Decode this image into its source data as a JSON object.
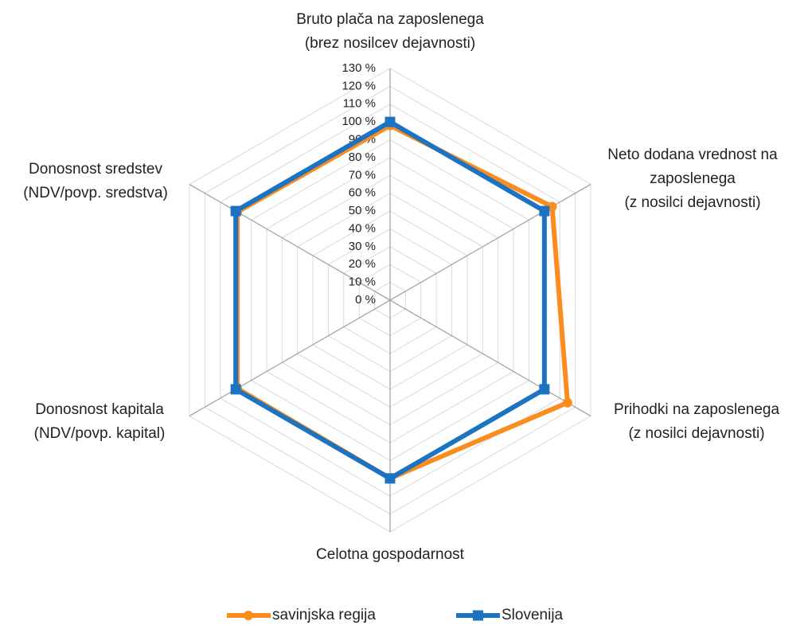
{
  "chart_data": {
    "type": "radar",
    "categories": [
      "Bruto plača na zaposlenega\n(brez nosilcev dejavnosti)",
      "Neto dodana vrednost na\nzaposlenega\n(z nosilci dejavnosti)",
      "Prihodki na zaposlenega\n(z nosilci dejavnosti)",
      "Celotna gospodarnost",
      "Donosnost kapitala\n(NDV/povp. kapital)",
      "Donosnost sredstev\n(NDV/povp. sredstva)"
    ],
    "series": [
      {
        "name": "savinjska regija",
        "color": "#fb8c1e",
        "values": [
          98,
          105,
          115,
          100,
          99,
          99
        ]
      },
      {
        "name": "Slovenija",
        "color": "#1b73c2",
        "values": [
          100,
          100,
          100,
          100,
          100,
          100
        ]
      }
    ],
    "ylim": [
      0,
      130
    ],
    "yticks": [
      {
        "value": 0,
        "label": "0 %"
      },
      {
        "value": 10,
        "label": "10 %"
      },
      {
        "value": 20,
        "label": "20 %"
      },
      {
        "value": 30,
        "label": "30 %"
      },
      {
        "value": 40,
        "label": "40 %"
      },
      {
        "value": 50,
        "label": "50 %"
      },
      {
        "value": 60,
        "label": "60 %"
      },
      {
        "value": 70,
        "label": "70 %"
      },
      {
        "value": 80,
        "label": "80 %"
      },
      {
        "value": 90,
        "label": "90 %"
      },
      {
        "value": 100,
        "label": "100 %"
      },
      {
        "value": 110,
        "label": "110 %"
      },
      {
        "value": 120,
        "label": "120 %"
      },
      {
        "value": 130,
        "label": "130 %"
      }
    ],
    "grid": true,
    "legend": "bottom"
  }
}
